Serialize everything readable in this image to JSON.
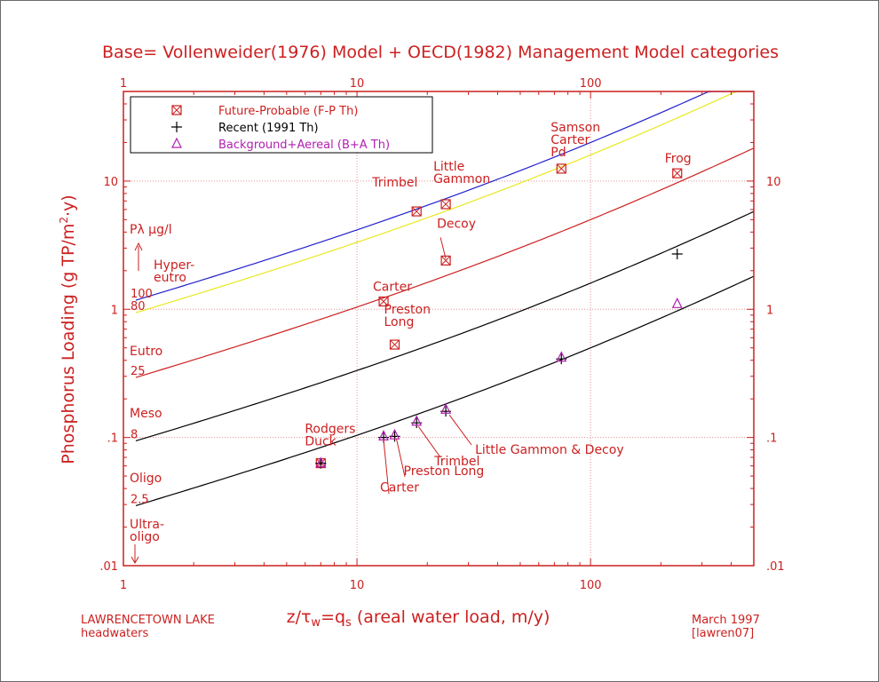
{
  "chart_data": {
    "type": "scatter",
    "title": "Base= Vollenweider(1976) Model + OECD(1982) Management Model categories",
    "xlabel": {
      "pre": "z/",
      "tau": "τ",
      "w": "w",
      "eq": "=q",
      "s": "s",
      "post": " (areal water load, m/y)"
    },
    "ylabel": {
      "pre": "Phosphorus Loading (g TP/m",
      "sup": "2",
      "post": "·y)"
    },
    "x_scale": "log",
    "y_scale": "log",
    "xlim": [
      1,
      500
    ],
    "ylim": [
      0.01,
      50
    ],
    "grid": true,
    "x_ticks": [
      {
        "value": 1,
        "label": "1"
      },
      {
        "value": 10,
        "label": "10"
      },
      {
        "value": 100,
        "label": "100"
      }
    ],
    "y_ticks": [
      {
        "value": 0.01,
        "label": ".01"
      },
      {
        "value": 0.1,
        "label": ".1"
      },
      {
        "value": 1,
        "label": "1"
      },
      {
        "value": 10,
        "label": "10"
      }
    ],
    "legend": {
      "placement": "top-left",
      "entries": [
        {
          "marker": "boxx",
          "label": "Future-Probable (F-P Th)",
          "color": "#cc2020"
        },
        {
          "marker": "plus",
          "label": "Recent (1991 Th)",
          "color": "#000000"
        },
        {
          "marker": "triangle",
          "label": "Background+Aereal (B+A Th)",
          "color": "#b020b0"
        }
      ]
    },
    "curves": [
      {
        "name": "100",
        "p_ug_per_l": 100,
        "color": "#2020cc"
      },
      {
        "name": "80",
        "p_ug_per_l": 80,
        "color": "#e8e820"
      },
      {
        "name": "25",
        "p_ug_per_l": 25,
        "color": "#cc2020"
      },
      {
        "name": "8",
        "p_ug_per_l": 8,
        "color": "#000000"
      },
      {
        "name": "2.5",
        "p_ug_per_l": 2.5,
        "color": "#000000"
      }
    ],
    "series": [
      {
        "name": "Future-Probable (F-P Th)",
        "marker": "boxx",
        "color": "#cc2020",
        "points": [
          {
            "x": 7,
            "y": 0.063
          },
          {
            "x": 13,
            "y": 1.15
          },
          {
            "x": 14.5,
            "y": 0.53
          },
          {
            "x": 18,
            "y": 5.8
          },
          {
            "x": 24,
            "y": 6.6
          },
          {
            "x": 24,
            "y": 2.4
          },
          {
            "x": 75,
            "y": 12.5
          },
          {
            "x": 235,
            "y": 11.5
          }
        ]
      },
      {
        "name": "Recent (1991 Th)",
        "marker": "plus",
        "color": "#000000",
        "points": [
          {
            "x": 7,
            "y": 0.063
          },
          {
            "x": 13,
            "y": 0.1
          },
          {
            "x": 14.5,
            "y": 0.102
          },
          {
            "x": 18,
            "y": 0.13
          },
          {
            "x": 24,
            "y": 0.16
          },
          {
            "x": 75,
            "y": 0.41
          },
          {
            "x": 235,
            "y": 2.7
          }
        ]
      },
      {
        "name": "Background+Aereal (B+A Th)",
        "marker": "triangle",
        "color": "#b020b0",
        "points": [
          {
            "x": 7,
            "y": 0.063
          },
          {
            "x": 13,
            "y": 0.102
          },
          {
            "x": 14.5,
            "y": 0.104
          },
          {
            "x": 18,
            "y": 0.133
          },
          {
            "x": 24,
            "y": 0.165
          },
          {
            "x": 75,
            "y": 0.42
          },
          {
            "x": 235,
            "y": 1.1
          }
        ]
      }
    ],
    "point_labels": [
      {
        "lines": [
          "Rodgers",
          "Duck"
        ],
        "at": [
          7,
          0.063
        ]
      },
      {
        "lines": [
          "Carter"
        ],
        "at": [
          13,
          1.15
        ]
      },
      {
        "lines": [
          "Preston",
          "Long"
        ],
        "at": [
          14.5,
          0.53
        ]
      },
      {
        "lines": [
          "Trimbel"
        ],
        "at": [
          18,
          5.8
        ]
      },
      {
        "lines": [
          "Little",
          "Gammon"
        ],
        "at": [
          24,
          6.6
        ]
      },
      {
        "lines": [
          "Decoy"
        ],
        "at": [
          24,
          2.4
        ]
      },
      {
        "lines": [
          "Samson",
          "Carter",
          "Pd"
        ],
        "at": [
          75,
          12.5
        ]
      },
      {
        "lines": [
          "Frog"
        ],
        "at": [
          235,
          11.5
        ]
      },
      {
        "lines": [
          "Little Gammon & Decoy"
        ],
        "at": [
          24,
          0.16
        ]
      },
      {
        "lines": [
          "Trimbel"
        ],
        "at": [
          18,
          0.13
        ]
      },
      {
        "lines": [
          "Preston Long"
        ],
        "at": [
          14.5,
          0.104
        ]
      },
      {
        "lines": [
          "Carter"
        ],
        "at": [
          13,
          0.102
        ]
      }
    ],
    "left_annotations": {
      "p_label": "Pλ μg/l",
      "categories": [
        [
          "Hyper-",
          "eutro"
        ],
        [
          "Eutro"
        ],
        [
          "Meso"
        ],
        [
          "Oligo"
        ],
        [
          "Ultra-",
          "oligo"
        ]
      ]
    }
  },
  "footer": {
    "lake": "LAWRENCETOWN LAKE",
    "basin": "headwaters",
    "date": "March 1997",
    "code": "[lawren07]"
  }
}
